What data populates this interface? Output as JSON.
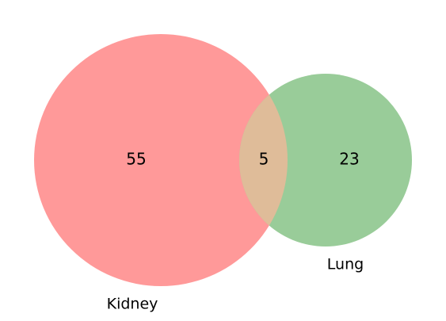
{
  "sets": [
    {
      "label": "Kidney",
      "color": "#ff9999",
      "count_only": "55"
    },
    {
      "label": "Lung",
      "color": "#99cc99",
      "count_only": "23"
    }
  ],
  "intersection": {
    "count": "5",
    "color": "#dfbc99"
  }
}
